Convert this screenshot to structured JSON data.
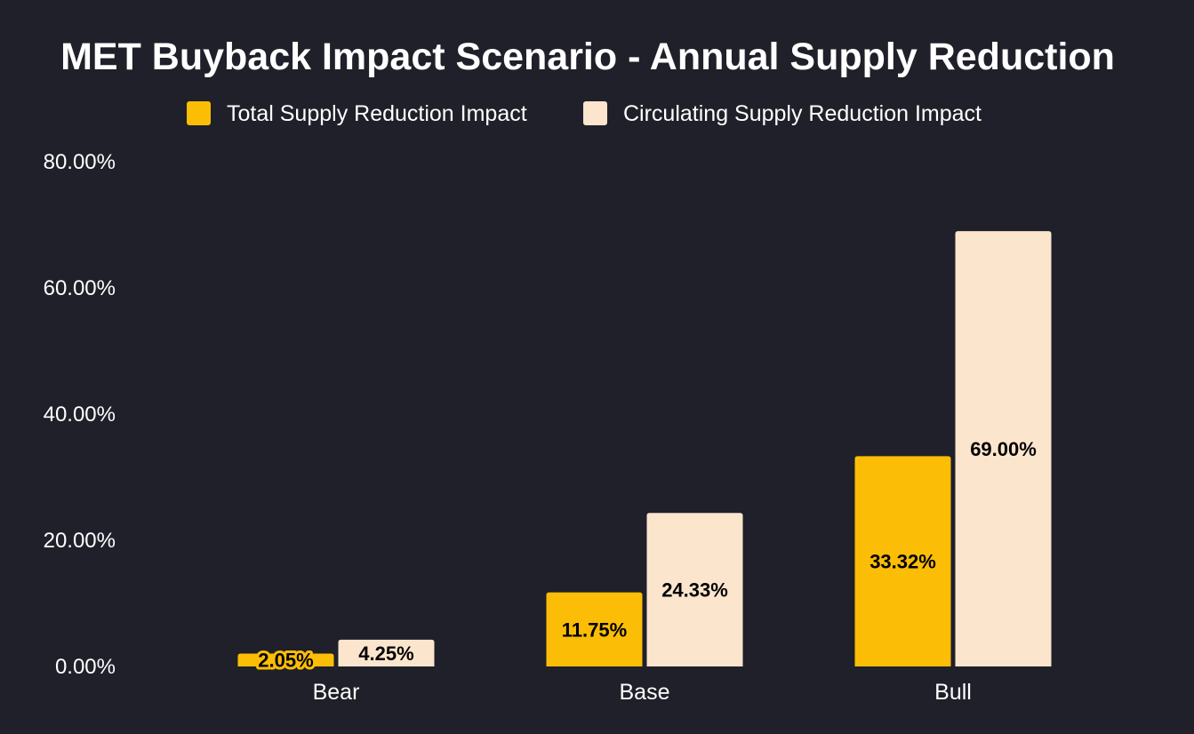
{
  "chart_data": {
    "type": "bar",
    "title": "MET Buyback Impact Scenario - Annual Supply Reduction",
    "xlabel": "",
    "ylabel": "",
    "categories": [
      "Bear",
      "Base",
      "Bull"
    ],
    "series": [
      {
        "name": "Total Supply Reduction Impact",
        "color": "#fbbd06",
        "values": [
          2.05,
          11.75,
          33.32
        ],
        "labels": [
          "2.05%",
          "11.75%",
          "33.32%"
        ]
      },
      {
        "name": "Circulating Supply Reduction Impact",
        "color": "#fce5cd",
        "values": [
          4.25,
          24.33,
          69.0
        ],
        "labels": [
          "4.25%",
          "24.33%",
          "69.00%"
        ]
      }
    ],
    "ylim": [
      0,
      80
    ],
    "yticks": [
      0,
      20,
      40,
      60,
      80
    ],
    "ytick_labels": [
      "0.00%",
      "20.00%",
      "40.00%",
      "60.00%",
      "80.00%"
    ],
    "grid": false,
    "legend_position": "top-center"
  }
}
